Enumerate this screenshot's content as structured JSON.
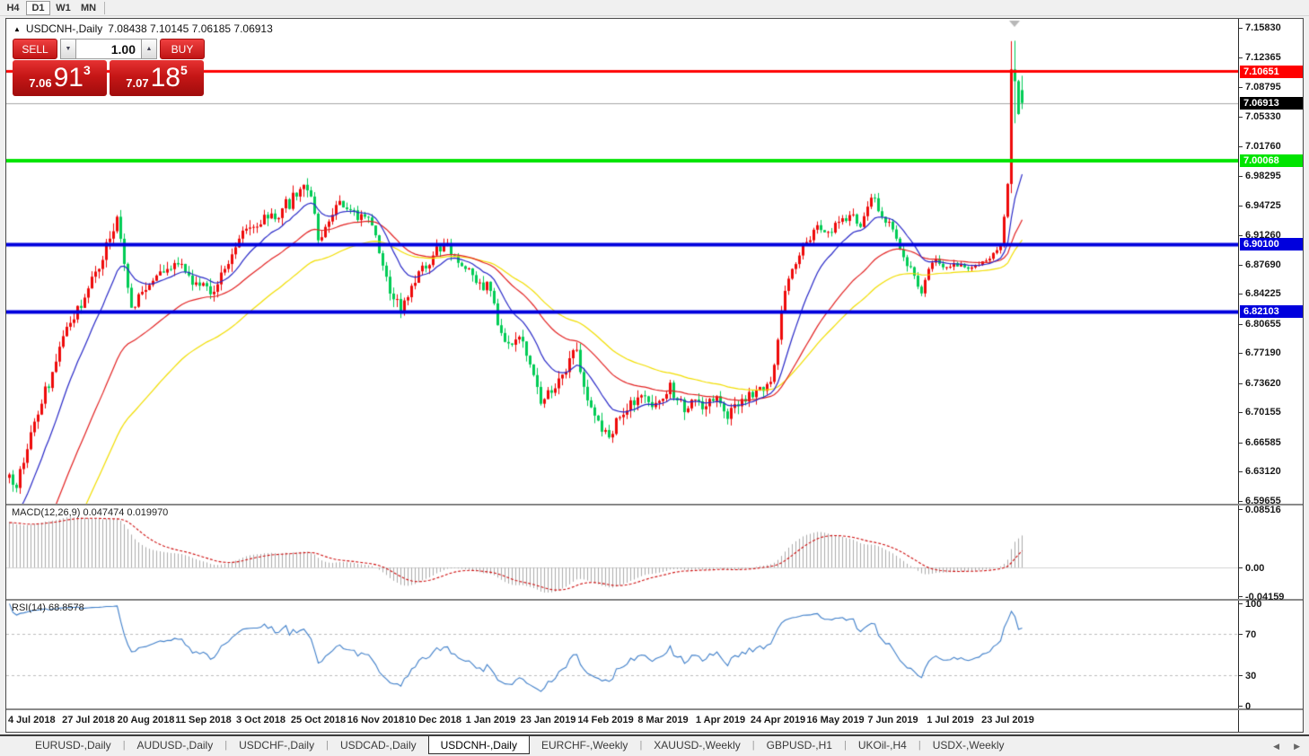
{
  "toolbar": {
    "timeframes": [
      {
        "label": "H4",
        "active": false
      },
      {
        "label": "D1",
        "active": true
      },
      {
        "label": "W1",
        "active": false
      },
      {
        "label": "MN",
        "active": false
      }
    ]
  },
  "title": {
    "symbol": "USDCNH-,Daily",
    "ohlc": "7.08438 7.10145 7.06185 7.06913"
  },
  "trade": {
    "sell_label": "SELL",
    "buy_label": "BUY",
    "volume": "1.00",
    "bid_small": "7.06",
    "bid_big": "91",
    "bid_sup": "3",
    "ask_small": "7.07",
    "ask_big": "18",
    "ask_sup": "5"
  },
  "macd_panel": {
    "label_name": "MACD(12,26,9)",
    "label_values": "0.047474 0.019970"
  },
  "rsi_panel": {
    "label_name": "RSI(14)",
    "label_values": "68.8578"
  },
  "tabs": {
    "items": [
      {
        "label": "EURUSD-,Daily",
        "active": false
      },
      {
        "label": "AUDUSD-,Daily",
        "active": false
      },
      {
        "label": "USDCHF-,Daily",
        "active": false
      },
      {
        "label": "USDCAD-,Daily",
        "active": false
      },
      {
        "label": "USDCNH-,Daily",
        "active": true
      },
      {
        "label": "EURCHF-,Weekly",
        "active": false
      },
      {
        "label": "XAUUSD-,Weekly",
        "active": false
      },
      {
        "label": "GBPUSD-,H1",
        "active": false
      },
      {
        "label": "UKOil-,H4",
        "active": false
      },
      {
        "label": "USDX-,Weekly",
        "active": false
      }
    ],
    "scroll_left": "◀",
    "scroll_right": "▶"
  },
  "chart_data": {
    "type": "candlestick",
    "symbol": "USDCNH-",
    "timeframe": "Daily",
    "bars": 283,
    "seed": 20190808,
    "x0": 2,
    "dx": 4,
    "ylim": [
      6.5933,
      7.169
    ],
    "y_ticks": [
      {
        "v": 7.1583,
        "t": "7.15830"
      },
      {
        "v": 7.12365,
        "t": "7.12365"
      },
      {
        "v": 7.08795,
        "t": "7.08795"
      },
      {
        "v": 7.0533,
        "t": "7.05330"
      },
      {
        "v": 7.0176,
        "t": "7.01760"
      },
      {
        "v": 6.98295,
        "t": "6.98295"
      },
      {
        "v": 6.94725,
        "t": "6.94725"
      },
      {
        "v": 6.9126,
        "t": "6.91260"
      },
      {
        "v": 6.8769,
        "t": "6.87690"
      },
      {
        "v": 6.84225,
        "t": "6.84225"
      },
      {
        "v": 6.80655,
        "t": "6.80655"
      },
      {
        "v": 6.7719,
        "t": "6.77190"
      },
      {
        "v": 6.7362,
        "t": "6.73620"
      },
      {
        "v": 6.70155,
        "t": "6.70155"
      },
      {
        "v": 6.66585,
        "t": "6.66585"
      },
      {
        "v": 6.6312,
        "t": "6.63120"
      },
      {
        "v": 6.59655,
        "t": "6.59655"
      }
    ],
    "up_color": "#ee0a0a",
    "down_color": "#00cc55",
    "preroll": {
      "bars": 48,
      "start": 6.15
    },
    "anchors": [
      [
        0,
        6.628
      ],
      [
        2,
        6.612
      ],
      [
        5,
        6.658
      ],
      [
        9,
        6.712
      ],
      [
        13,
        6.762
      ],
      [
        17,
        6.808
      ],
      [
        21,
        6.838
      ],
      [
        25,
        6.872
      ],
      [
        28,
        6.908
      ],
      [
        30,
        6.934
      ],
      [
        32,
        6.878
      ],
      [
        34,
        6.826
      ],
      [
        36,
        6.842
      ],
      [
        40,
        6.858
      ],
      [
        44,
        6.872
      ],
      [
        48,
        6.878
      ],
      [
        52,
        6.856
      ],
      [
        56,
        6.842
      ],
      [
        60,
        6.872
      ],
      [
        64,
        6.908
      ],
      [
        68,
        6.922
      ],
      [
        72,
        6.932
      ],
      [
        76,
        6.944
      ],
      [
        80,
        6.958
      ],
      [
        82,
        6.972
      ],
      [
        84,
        6.958
      ],
      [
        86,
        6.906
      ],
      [
        88,
        6.922
      ],
      [
        91,
        6.948
      ],
      [
        95,
        6.942
      ],
      [
        99,
        6.934
      ],
      [
        102,
        6.912
      ],
      [
        104,
        6.876
      ],
      [
        107,
        6.836
      ],
      [
        109,
        6.822
      ],
      [
        112,
        6.852
      ],
      [
        115,
        6.876
      ],
      [
        118,
        6.888
      ],
      [
        121,
        6.902
      ],
      [
        124,
        6.888
      ],
      [
        127,
        6.872
      ],
      [
        131,
        6.856
      ],
      [
        134,
        6.846
      ],
      [
        137,
        6.796
      ],
      [
        140,
        6.782
      ],
      [
        143,
        6.786
      ],
      [
        146,
        6.746
      ],
      [
        148,
        6.712
      ],
      [
        150,
        6.728
      ],
      [
        153,
        6.742
      ],
      [
        156,
        6.766
      ],
      [
        158,
        6.776
      ],
      [
        161,
        6.716
      ],
      [
        164,
        6.692
      ],
      [
        167,
        6.672
      ],
      [
        170,
        6.696
      ],
      [
        173,
        6.716
      ],
      [
        176,
        6.722
      ],
      [
        179,
        6.708
      ],
      [
        182,
        6.718
      ],
      [
        184,
        6.737
      ],
      [
        186,
        6.716
      ],
      [
        188,
        6.702
      ],
      [
        191,
        6.717
      ],
      [
        194,
        6.709
      ],
      [
        197,
        6.721
      ],
      [
        200,
        6.694
      ],
      [
        203,
        6.709
      ],
      [
        206,
        6.726
      ],
      [
        209,
        6.732
      ],
      [
        212,
        6.738
      ],
      [
        214,
        6.788
      ],
      [
        216,
        6.846
      ],
      [
        218,
        6.872
      ],
      [
        220,
        6.888
      ],
      [
        222,
        6.904
      ],
      [
        225,
        6.924
      ],
      [
        228,
        6.916
      ],
      [
        231,
        6.928
      ],
      [
        234,
        6.936
      ],
      [
        237,
        6.922
      ],
      [
        239,
        6.946
      ],
      [
        241,
        6.956
      ],
      [
        243,
        6.934
      ],
      [
        245,
        6.928
      ],
      [
        247,
        6.908
      ],
      [
        249,
        6.886
      ],
      [
        252,
        6.864
      ],
      [
        254,
        6.843
      ],
      [
        256,
        6.872
      ],
      [
        258,
        6.884
      ],
      [
        260,
        6.874
      ],
      [
        263,
        6.879
      ],
      [
        266,
        6.874
      ],
      [
        269,
        6.876
      ],
      [
        272,
        6.882
      ],
      [
        274,
        6.891
      ],
      [
        276,
        6.9
      ],
      [
        277,
        6.934
      ],
      [
        278,
        6.973
      ],
      [
        279,
        7.109
      ],
      [
        280,
        7.095
      ],
      [
        281,
        7.056
      ],
      [
        282,
        7.069
      ]
    ],
    "noise_zones": [
      {
        "from": 0,
        "to": 211,
        "amp": 0.0085
      },
      {
        "from": 212,
        "to": 254,
        "amp": 0.006
      },
      {
        "from": 255,
        "to": 277,
        "amp": 0.0028
      },
      {
        "from": 278,
        "to": 282,
        "amp": 0.0
      }
    ],
    "last_candle": {
      "o": 7.08438,
      "h": 7.10145,
      "l": 7.06185,
      "c": 7.06913
    },
    "wick_overrides": [
      {
        "bar": 279,
        "low": 6.962,
        "high": 7.1425
      },
      {
        "bar": 280,
        "low": 7.045,
        "high": 7.143
      }
    ],
    "current_price": 7.06913,
    "current_label": {
      "price": 7.06913,
      "label": "7.06913",
      "color": "#000000",
      "text_color": "#ffffff"
    },
    "level_lines": [
      {
        "price": 7.10651,
        "color": "#ff0000",
        "width": 3,
        "label": "7.10651",
        "text_color": "#ffffff"
      },
      {
        "price": 7.00068,
        "color": "#00e400",
        "width": 4,
        "label": "7.00068",
        "text_color": "#ffffff"
      },
      {
        "price": 6.901,
        "color": "#0000dd",
        "width": 4,
        "label": "6.90100",
        "text_color": "#ffffff"
      },
      {
        "price": 6.82103,
        "color": "#0000dd",
        "width": 4,
        "label": "6.82103",
        "text_color": "#ffffff"
      }
    ],
    "moving_averages": [
      {
        "period": 55,
        "color": "#f2de00"
      },
      {
        "period": 34,
        "color": "#e32222"
      },
      {
        "period": 13,
        "color": "#2929c8"
      }
    ],
    "macd": {
      "fast": 12,
      "slow": 26,
      "signal": 9,
      "value": 0.047474,
      "signal_value": 0.01997,
      "ylim": [
        -0.0456,
        0.0902
      ],
      "ticks": [
        {
          "v": 0.08516,
          "t": "0.08516"
        },
        {
          "v": 0.0,
          "t": "0.00"
        },
        {
          "v": -0.04159,
          "t": "-0.04159"
        }
      ],
      "hist_color": "#ababab",
      "signal_color": "#cf0e0e"
    },
    "rsi": {
      "period": 14,
      "value": 68.8578,
      "ylim": [
        -3,
        103
      ],
      "ticks": [
        {
          "v": 100,
          "t": "100"
        },
        {
          "v": 70,
          "t": "70"
        },
        {
          "v": 30,
          "t": "30"
        },
        {
          "v": 0,
          "t": "0"
        }
      ],
      "levels": [
        70,
        30
      ],
      "color": "#3f7fca"
    },
    "x_labels": [
      {
        "bar": 5,
        "text": "4 Jul 2018"
      },
      {
        "bar": 22,
        "text": "27 Jul 2018"
      },
      {
        "bar": 38,
        "text": "20 Aug 2018"
      },
      {
        "bar": 54,
        "text": "11 Sep 2018"
      },
      {
        "bar": 70,
        "text": "3 Oct 2018"
      },
      {
        "bar": 86,
        "text": "25 Oct 2018"
      },
      {
        "bar": 102,
        "text": "16 Nov 2018"
      },
      {
        "bar": 118,
        "text": "10 Dec 2018"
      },
      {
        "bar": 134,
        "text": "1 Jan 2019"
      },
      {
        "bar": 150,
        "text": "23 Jan 2019"
      },
      {
        "bar": 166,
        "text": "14 Feb 2019"
      },
      {
        "bar": 182,
        "text": "8 Mar 2019"
      },
      {
        "bar": 198,
        "text": "1 Apr 2019"
      },
      {
        "bar": 214,
        "text": "24 Apr 2019"
      },
      {
        "bar": 230,
        "text": "16 May 2019"
      },
      {
        "bar": 246,
        "text": "7 Jun 2019"
      },
      {
        "bar": 262,
        "text": "1 Jul 2019"
      },
      {
        "bar": 278,
        "text": "23 Jul 2019"
      }
    ]
  }
}
